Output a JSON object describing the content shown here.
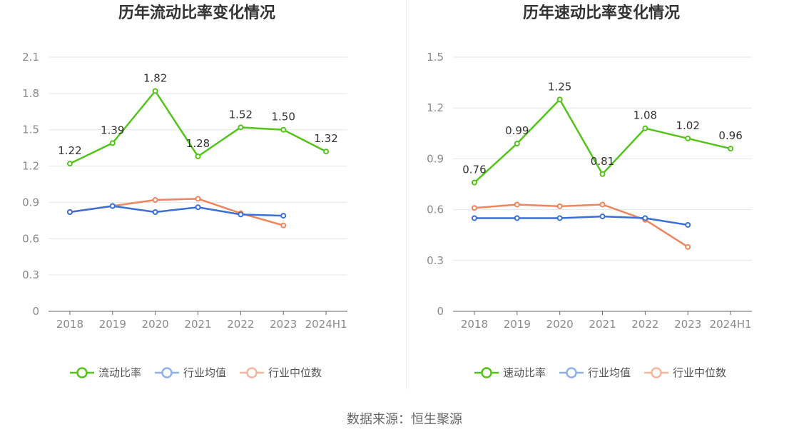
{
  "chart_data": [
    {
      "type": "line",
      "title": "历年流动比率变化情况",
      "categories": [
        "2018",
        "2019",
        "2020",
        "2021",
        "2022",
        "2023",
        "2024H1"
      ],
      "ylim": [
        0,
        2.1
      ],
      "yticks": [
        "0",
        "0.3",
        "0.6",
        "0.9",
        "1.2",
        "1.5",
        "1.8",
        "2.1"
      ],
      "grid": true,
      "legend_position": "bottom",
      "series": [
        {
          "name": "流动比率",
          "color": "#52c41a",
          "values": [
            1.22,
            1.39,
            1.82,
            1.28,
            1.52,
            1.5,
            1.32
          ],
          "labels": [
            "1.22",
            "1.39",
            "1.82",
            "1.28",
            "1.52",
            "1.50",
            "1.32"
          ]
        },
        {
          "name": "行业均值",
          "color": "#3a6fd8",
          "values": [
            0.82,
            0.87,
            0.82,
            0.86,
            0.8,
            0.79,
            null
          ]
        },
        {
          "name": "行业中位数",
          "color": "#f0845c",
          "values": [
            0.82,
            0.87,
            0.92,
            0.93,
            0.81,
            0.71,
            null
          ]
        }
      ]
    },
    {
      "type": "line",
      "title": "历年速动比率变化情况",
      "categories": [
        "2018",
        "2019",
        "2020",
        "2021",
        "2022",
        "2023",
        "2024H1"
      ],
      "ylim": [
        0,
        1.5
      ],
      "yticks": [
        "0",
        "0.3",
        "0.6",
        "0.9",
        "1.2",
        "1.5"
      ],
      "grid": true,
      "legend_position": "bottom",
      "series": [
        {
          "name": "速动比率",
          "color": "#52c41a",
          "values": [
            0.76,
            0.99,
            1.25,
            0.81,
            1.08,
            1.02,
            0.96
          ],
          "labels": [
            "0.76",
            "0.99",
            "1.25",
            "0.81",
            "1.08",
            "1.02",
            "0.96"
          ]
        },
        {
          "name": "行业均值",
          "color": "#3a6fd8",
          "values": [
            0.55,
            0.55,
            0.55,
            0.56,
            0.55,
            0.51,
            null
          ]
        },
        {
          "name": "行业中位数",
          "color": "#f0845c",
          "values": [
            0.61,
            0.63,
            0.62,
            0.63,
            0.54,
            0.38,
            null
          ]
        }
      ]
    }
  ],
  "legend_colors": [
    "#52c41a",
    "#8fb0ef",
    "#f7b59c"
  ],
  "source": "数据来源：恒生聚源"
}
